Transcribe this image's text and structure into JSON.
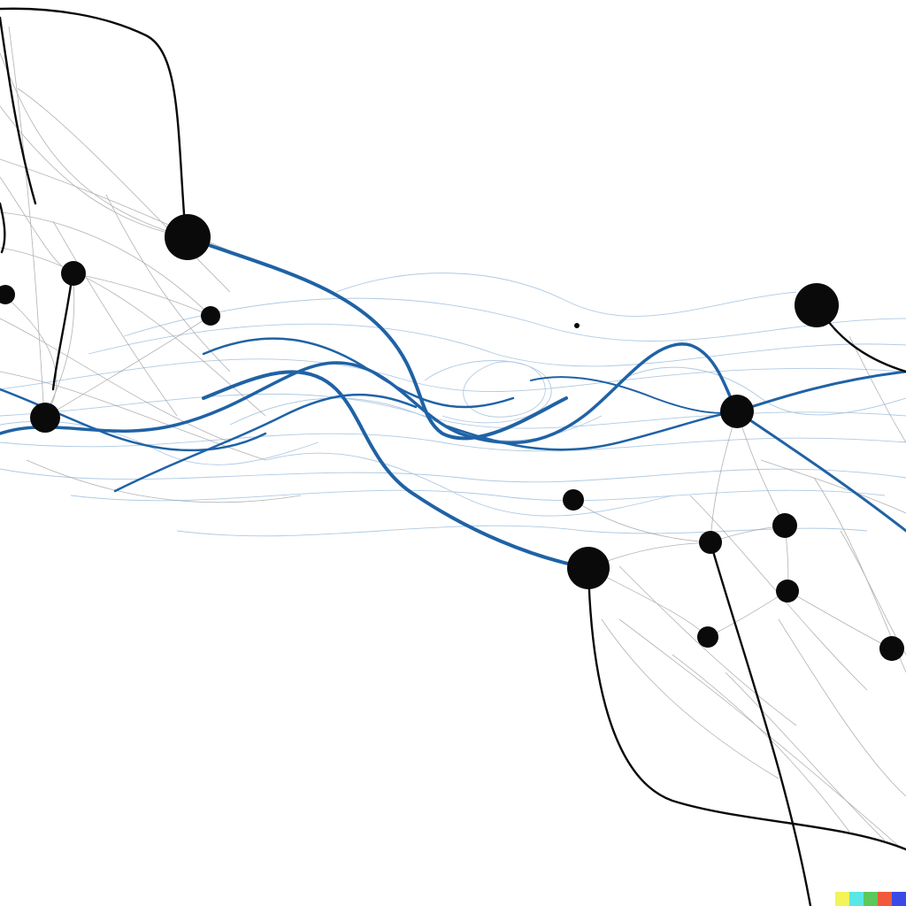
{
  "artwork": {
    "subject": "network-sketch",
    "colors": {
      "background": "#ffffff",
      "ink": "#0a0a0a",
      "graphite": "#555555",
      "blue": "#1f62a6",
      "blue_light": "#6f9fcc"
    }
  },
  "watermark": {
    "colors": [
      "#f3f35a",
      "#5ae6e6",
      "#5ac85a",
      "#f05a3a",
      "#3a4ae6"
    ]
  }
}
